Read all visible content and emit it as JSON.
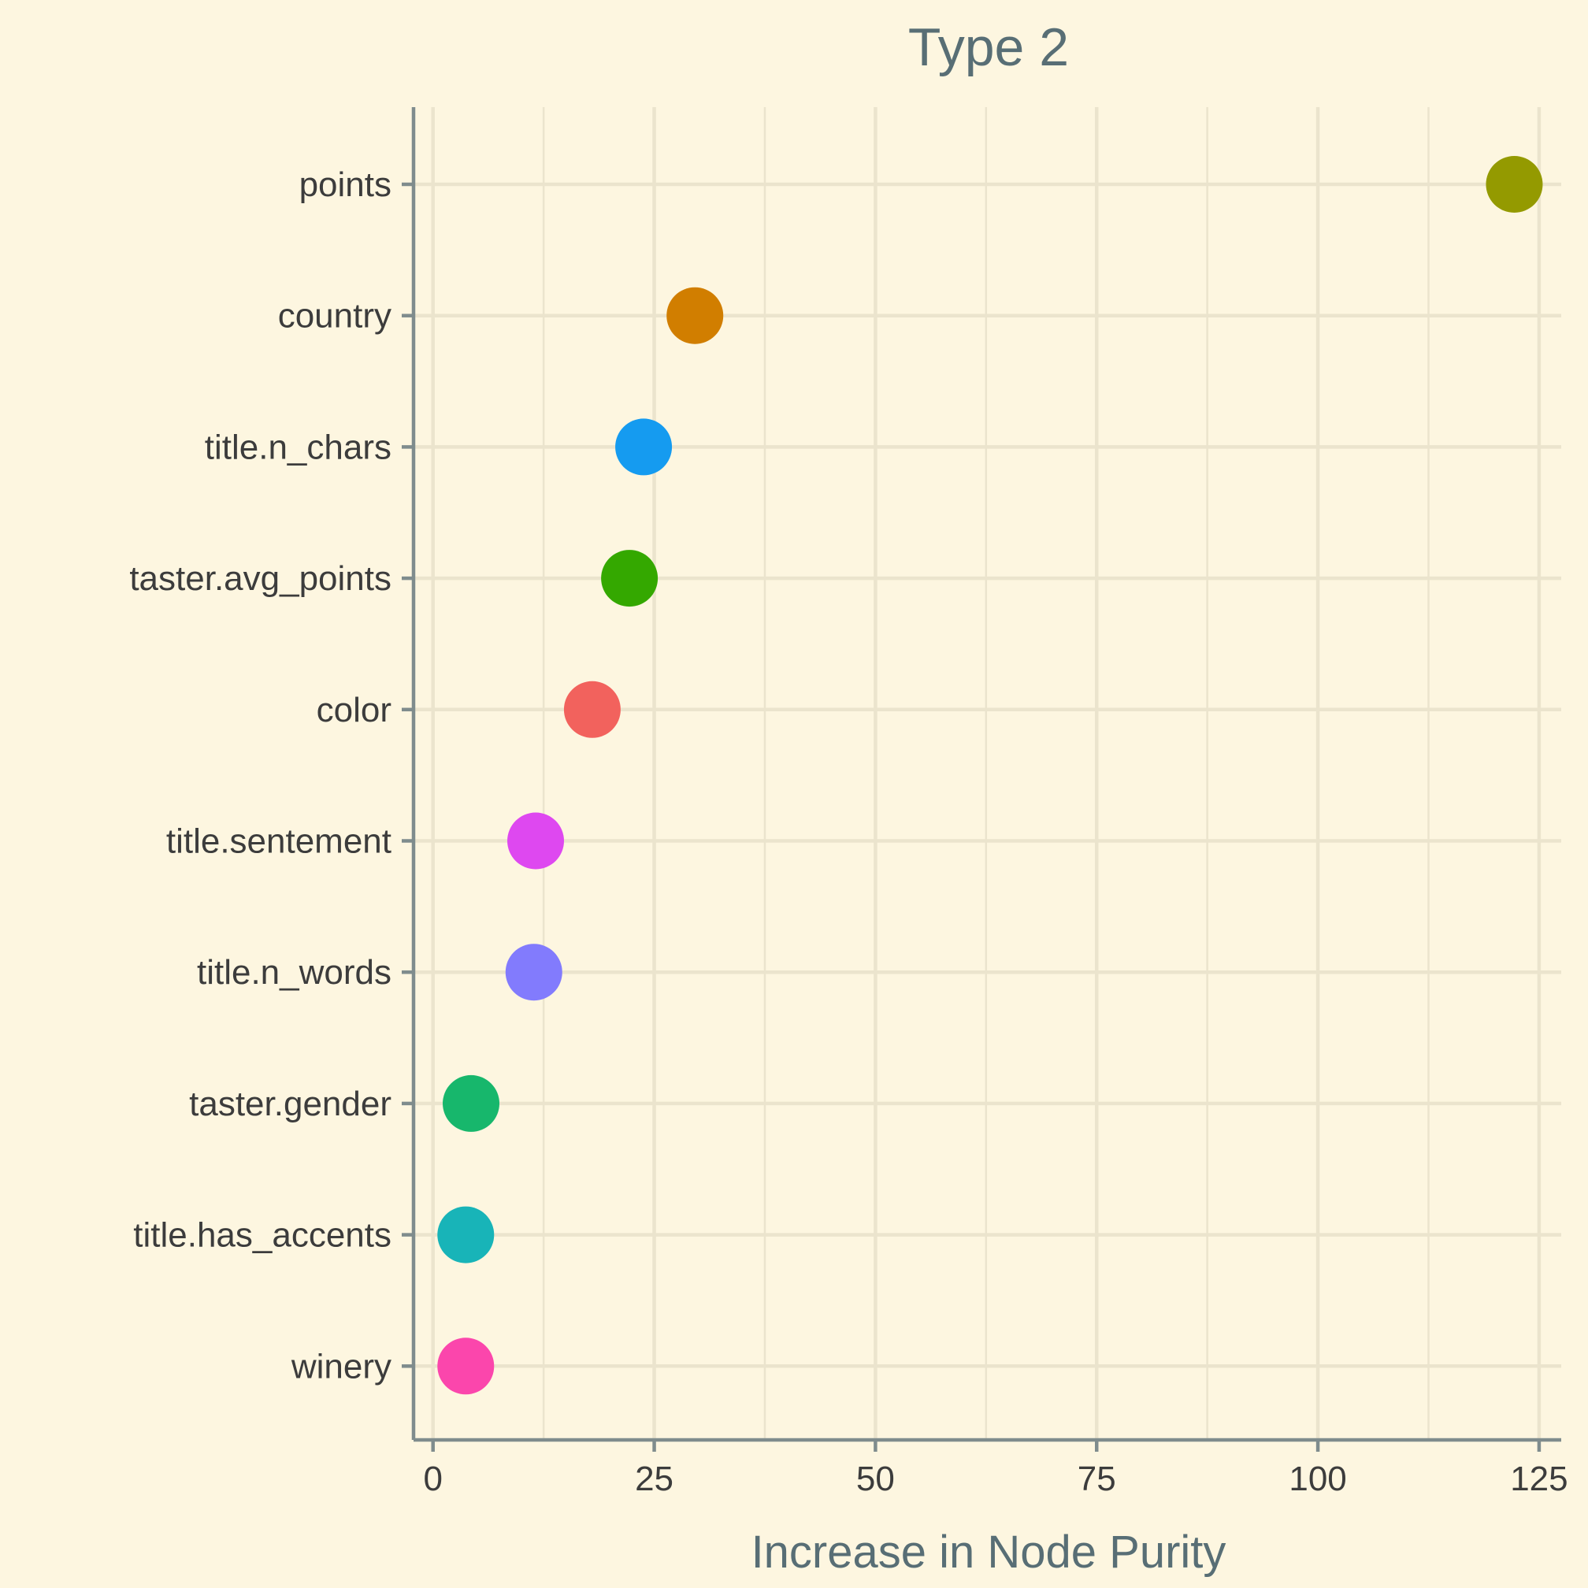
{
  "chart_data": {
    "type": "scatter",
    "title": "Type 2",
    "xlabel": "Increase in Node Purity",
    "ylabel": "",
    "xlim": [
      -2.2,
      127.5
    ],
    "xticks": [
      0,
      25,
      50,
      75,
      100,
      125
    ],
    "xtick_labels": [
      "0",
      "25",
      "50",
      "75",
      "100",
      "125"
    ],
    "grid": true,
    "legend": "none",
    "categories": [
      "points",
      "country",
      "title.n_chars",
      "taster.avg_points",
      "color",
      "title.sentement",
      "title.n_words",
      "taster.gender",
      "title.has_accents",
      "winery"
    ],
    "values": [
      122.2,
      29.6,
      23.8,
      22.2,
      18.0,
      11.6,
      11.4,
      4.3,
      3.7,
      3.7
    ],
    "colors": [
      "#949a00",
      "#d17e00",
      "#159bf0",
      "#34a800",
      "#f2625d",
      "#de48f0",
      "#827bfd",
      "#17b76c",
      "#18b4b8",
      "#fb46ac"
    ]
  }
}
